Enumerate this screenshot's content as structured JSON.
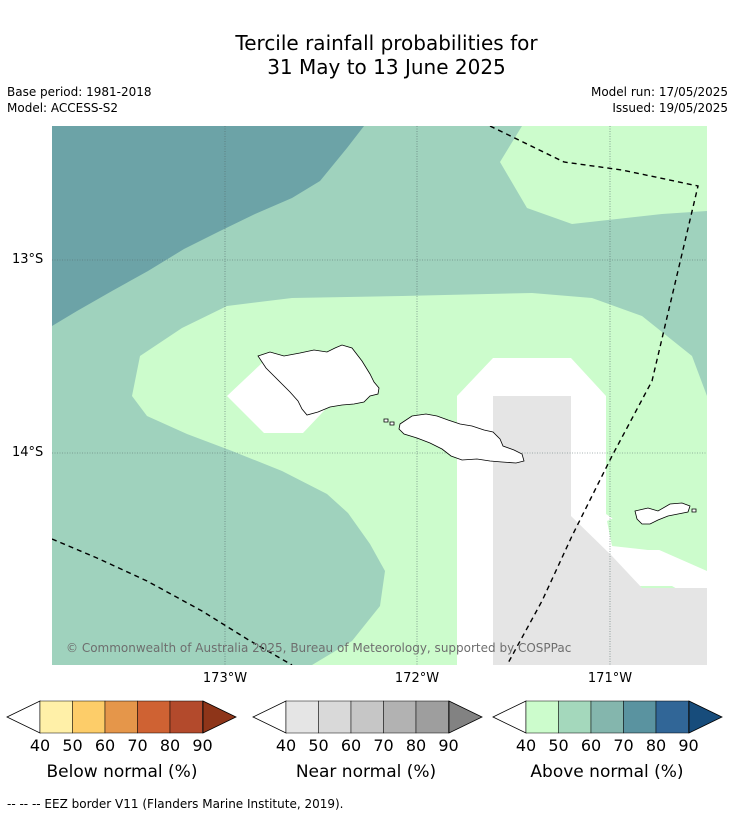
{
  "title_line1": "Tercile rainfall probabilities for",
  "title_line2": "31 May to 13 June 2025",
  "base_period": "Base period: 1981-2018",
  "model": "Model: ACCESS-S2",
  "model_run": "Model run: 17/05/2025",
  "issued": "Issued: 19/05/2025",
  "latitude_labels": [
    "13°S",
    "14°S"
  ],
  "longitude_labels": [
    "173°W",
    "172°W",
    "171°W"
  ],
  "copyright": "© Commonwealth of Australia 2025, Bureau of Meteorology, supported by COSPPac",
  "colorbars": [
    {
      "title": "Below normal (%)",
      "ticks": [
        "40",
        "50",
        "60",
        "70",
        "80",
        "90"
      ],
      "colors": [
        "#fff0a8",
        "#fdcd69",
        "#e5964a",
        "#cf6233",
        "#b34a2c",
        "#8e3519"
      ]
    },
    {
      "title": "Near normal (%)",
      "ticks": [
        "40",
        "50",
        "60",
        "70",
        "80",
        "90"
      ],
      "colors": [
        "#e5e5e5",
        "#d9d9d9",
        "#c6c6c6",
        "#b2b2b2",
        "#9e9e9e",
        "#828282"
      ]
    },
    {
      "title": "Above normal (%)",
      "ticks": [
        "40",
        "50",
        "60",
        "70",
        "80",
        "90"
      ],
      "colors": [
        "#ccfccc",
        "#a4d8bc",
        "#84b6ad",
        "#5a93a0",
        "#316697",
        "#174c7b"
      ]
    }
  ],
  "footnote": "--  --  -- EEZ border V11 (Flanders Marine Institute, 2019).",
  "map_colors": {
    "above_40": "#ccfccc",
    "above_50": "#9fd2bd",
    "above_60": "#6ca3a7",
    "near_40": "#e5e5e5",
    "gap": "#ffffff"
  }
}
